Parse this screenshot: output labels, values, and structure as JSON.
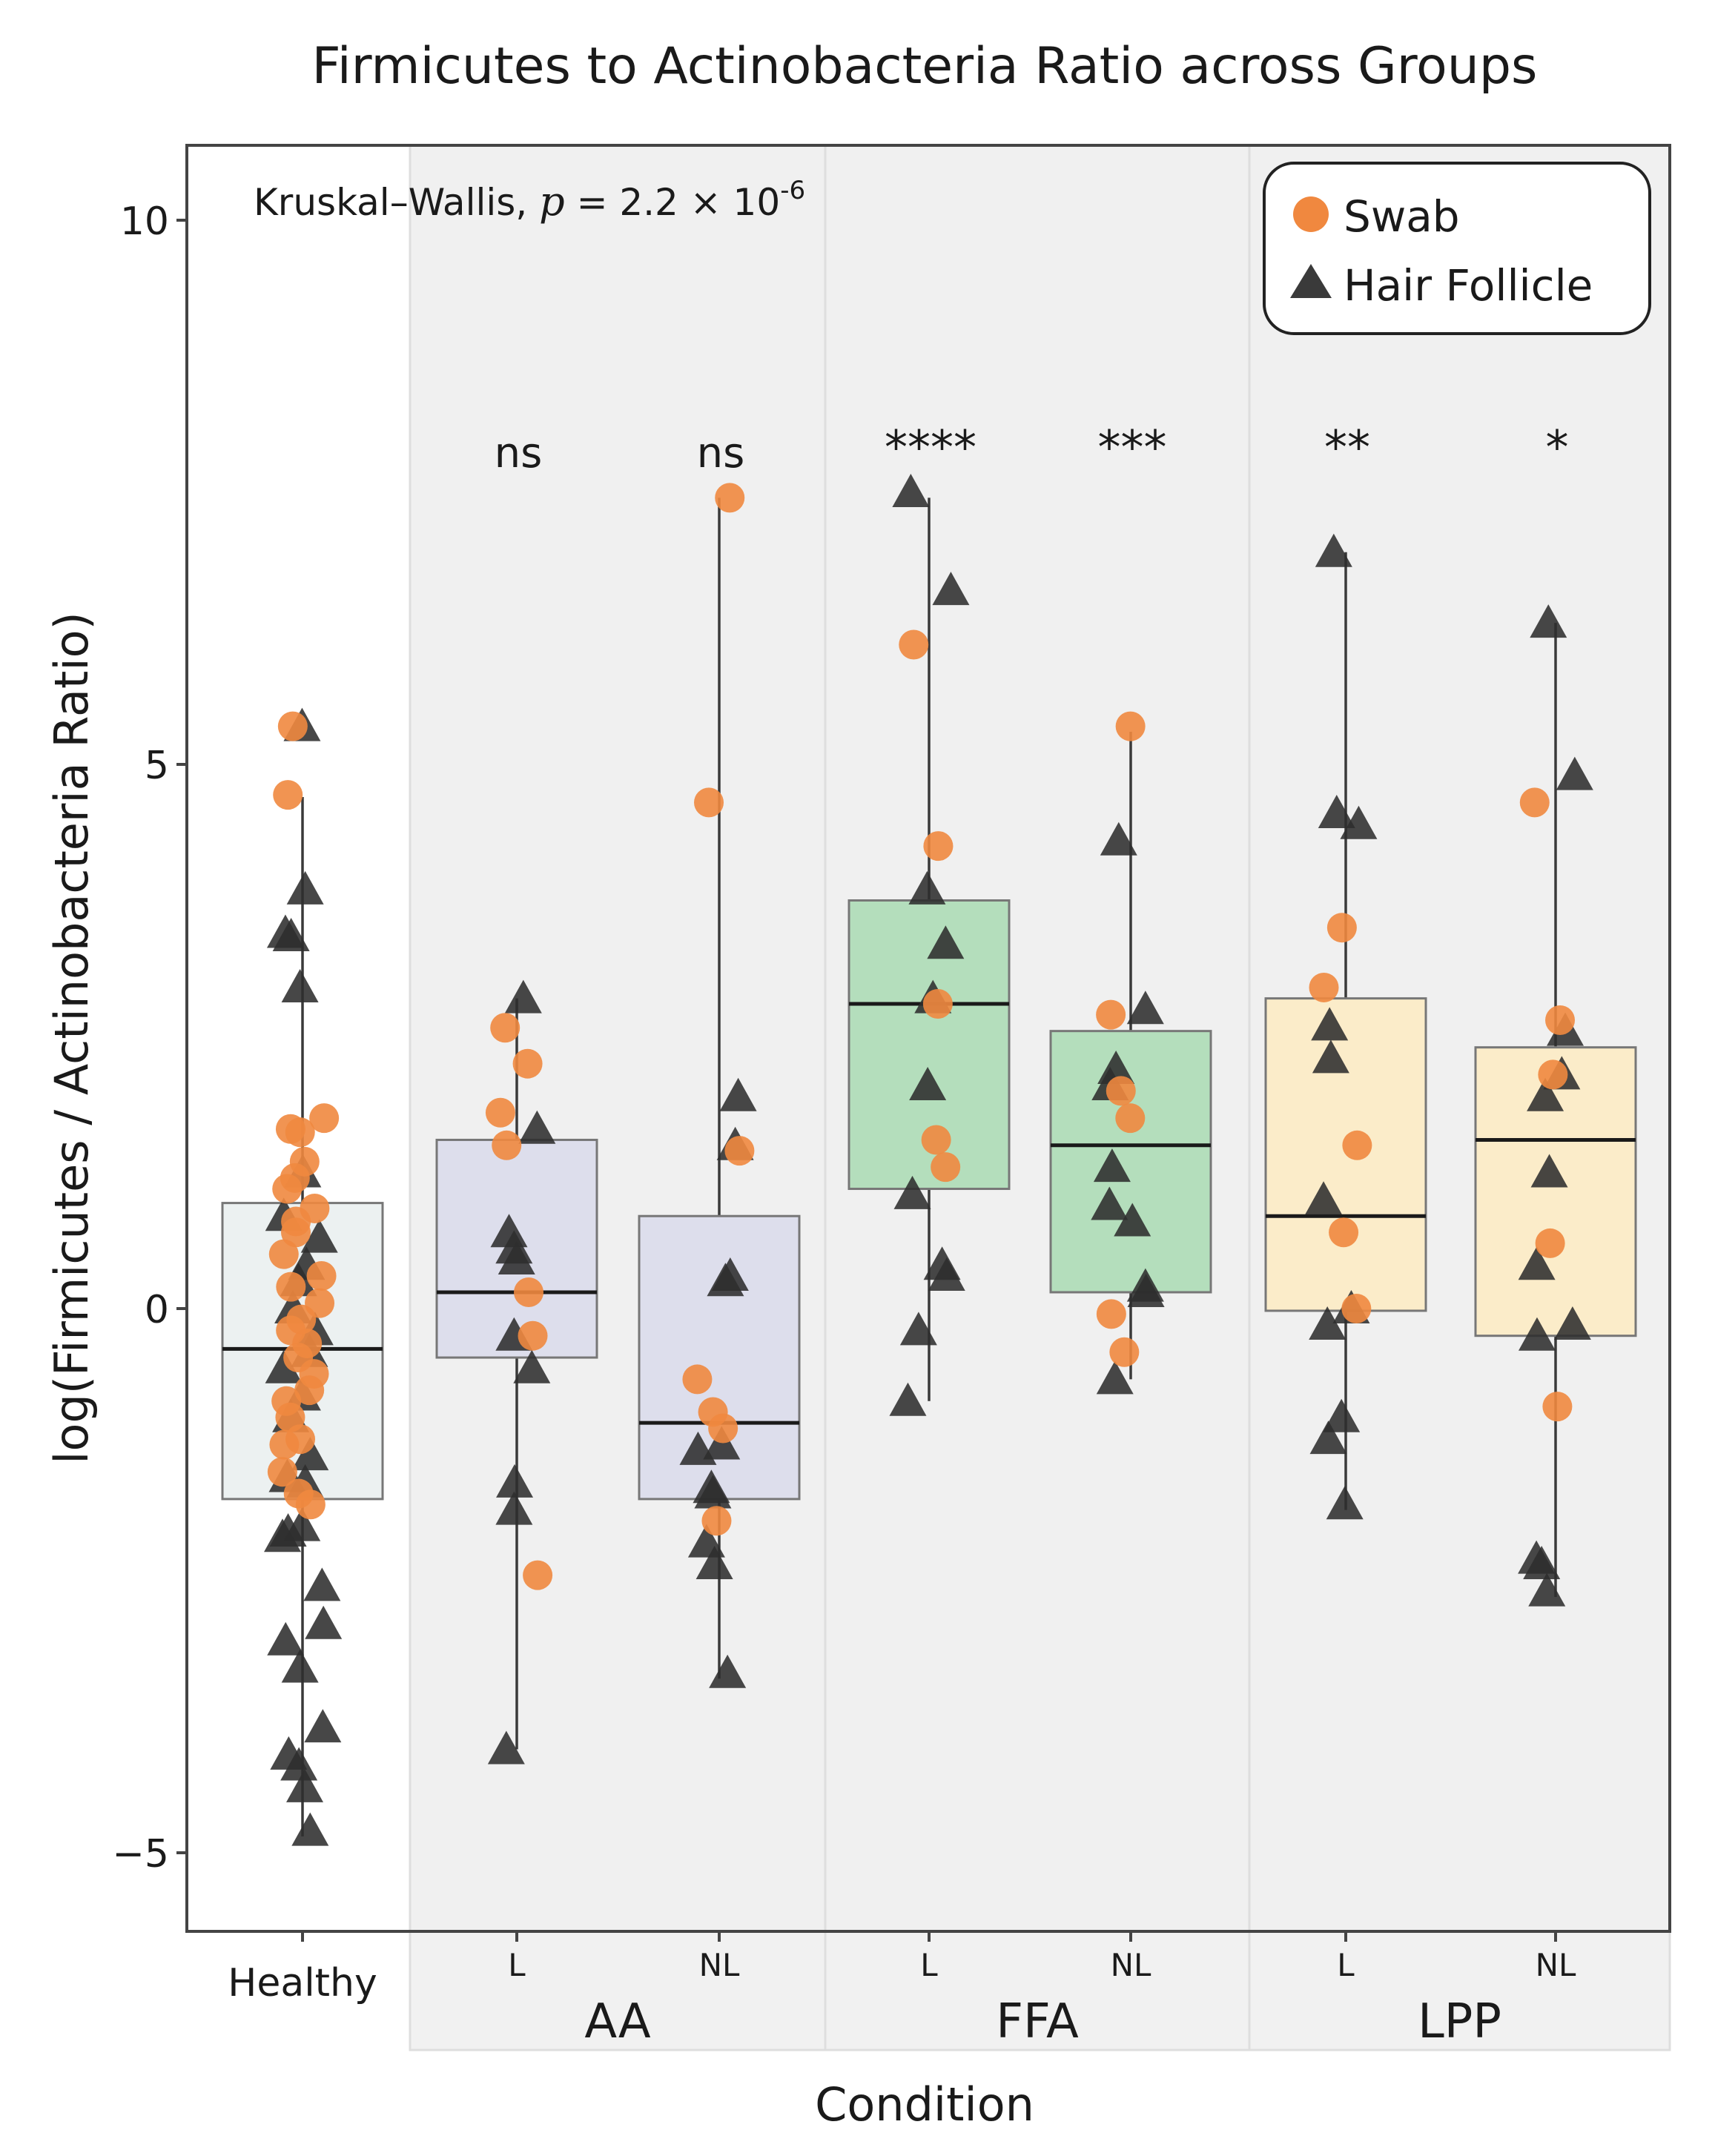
{
  "chart_data": {
    "type": "box",
    "title": "Firmicutes to Actinobacteria Ratio across Groups",
    "xlabel": "Condition",
    "ylabel": "log(Firmicutes / Actinobacteria Ratio)",
    "ylim": [
      -5.8,
      10.8
    ],
    "yticks": [
      -5,
      0,
      5,
      10
    ],
    "ytick_labels": [
      "−5",
      "0",
      "5",
      "10"
    ],
    "annotation": {
      "prefix": "Kruskal–Wallis, ",
      "p_symbol": "p",
      "equals": " = 2.2 × 10",
      "exponent": "-6"
    },
    "legend": {
      "position": "top-right",
      "entries": [
        {
          "label": "Swab",
          "marker": "circle",
          "color": "#f0883f"
        },
        {
          "label": "Hair Follicle",
          "marker": "triangle",
          "color": "#3a3a3a"
        }
      ]
    },
    "panels": [
      {
        "label": "",
        "shaded": false
      },
      {
        "label": "AA",
        "shaded": true
      },
      {
        "label": "FFA",
        "shaded": true
      },
      {
        "label": "LPP",
        "shaded": true
      }
    ],
    "groups": [
      {
        "name": "Healthy",
        "panel": 0,
        "fill": "#e9eeef",
        "significance": "",
        "box": {
          "q1": -1.75,
          "median": -0.37,
          "q3": 0.97,
          "whisker_low": -4.85,
          "whisker_high": 4.7
        },
        "swab": [
          5.35,
          4.72,
          1.75,
          1.62,
          1.65,
          1.35,
          1.2,
          1.1,
          0.92,
          0.8,
          0.7,
          0.5,
          0.3,
          0.2,
          0.05,
          -0.1,
          -0.2,
          -0.32,
          -0.45,
          -0.6,
          -0.75,
          -0.85,
          -1.0,
          -1.2,
          -1.25,
          -1.5,
          -1.7,
          -1.8
        ],
        "follicle": [
          5.35,
          3.85,
          3.45,
          3.42,
          2.95,
          1.25,
          0.85,
          0.65,
          0.4,
          0.25,
          0.0,
          -0.2,
          -0.4,
          -0.55,
          -0.8,
          -1.0,
          -1.35,
          -1.55,
          -1.6,
          -2.0,
          -2.05,
          -2.1,
          -2.55,
          -2.9,
          -3.05,
          -3.3,
          -3.85,
          -4.1,
          -4.2,
          -4.4,
          -4.8
        ]
      },
      {
        "name": "L",
        "panel": 1,
        "fill": "#d9daeb",
        "significance": "ns",
        "box": {
          "q1": -0.45,
          "median": 0.15,
          "q3": 1.55,
          "whisker_low": -4.05,
          "whisker_high": 2.85
        },
        "swab": [
          2.58,
          2.25,
          1.8,
          1.5,
          0.15,
          -0.25,
          -2.45
        ],
        "follicle": [
          2.85,
          1.65,
          0.7,
          0.55,
          0.45,
          -0.25,
          -0.55,
          -1.6,
          -1.85,
          -4.05
        ]
      },
      {
        "name": "NL",
        "panel": 1,
        "fill": "#d9daeb",
        "significance": "ns",
        "box": {
          "q1": -1.75,
          "median": -1.05,
          "q3": 0.85,
          "whisker_low": -3.4,
          "whisker_high": 7.45
        },
        "swab": [
          7.45,
          4.65,
          1.45,
          -0.65,
          -0.95,
          -1.1,
          -1.95
        ],
        "follicle": [
          1.95,
          1.5,
          0.3,
          0.25,
          -1.25,
          -1.3,
          -1.65,
          -1.7,
          -2.15,
          -2.35,
          -3.35
        ]
      },
      {
        "name": "L",
        "panel": 2,
        "fill": "#a9dbb3",
        "significance": "****",
        "box": {
          "q1": 1.1,
          "median": 2.8,
          "q3": 3.75,
          "whisker_low": -0.85,
          "whisker_high": 7.45
        },
        "swab": [
          6.1,
          4.25,
          2.8,
          1.55,
          1.3
        ],
        "follicle": [
          7.5,
          6.6,
          3.85,
          3.35,
          2.85,
          2.05,
          1.05,
          0.4,
          0.3,
          -0.2,
          -0.85
        ]
      },
      {
        "name": "NL",
        "panel": 2,
        "fill": "#a9dbb3",
        "significance": "***",
        "box": {
          "q1": 0.15,
          "median": 1.5,
          "q3": 2.55,
          "whisker_low": -0.65,
          "whisker_high": 5.3
        },
        "swab": [
          5.35,
          2.7,
          2.0,
          1.75,
          -0.05,
          -0.4
        ],
        "follicle": [
          4.3,
          2.75,
          2.2,
          2.05,
          1.3,
          0.95,
          0.8,
          0.2,
          0.15,
          -0.65
        ]
      },
      {
        "name": "L",
        "panel": 3,
        "fill": "#fdebc2",
        "significance": "**",
        "box": {
          "q1": -0.02,
          "median": 0.85,
          "q3": 2.85,
          "whisker_low": -1.85,
          "whisker_high": 6.95
        },
        "swab": [
          3.5,
          2.95,
          1.5,
          0.7,
          0.0
        ],
        "follicle": [
          6.95,
          4.55,
          4.45,
          2.6,
          2.3,
          1.0,
          0.0,
          -0.15,
          -1.0,
          -1.2,
          -1.8
        ]
      },
      {
        "name": "NL",
        "panel": 3,
        "fill": "#fdebc2",
        "significance": "*",
        "box": {
          "q1": -0.25,
          "median": 1.55,
          "q3": 2.4,
          "whisker_low": -2.65,
          "whisker_high": 6.3
        },
        "swab": [
          4.65,
          2.65,
          2.15,
          0.6,
          -0.9
        ],
        "follicle": [
          6.3,
          4.9,
          2.55,
          2.15,
          1.95,
          1.25,
          0.4,
          -0.15,
          -0.25,
          -2.3,
          -2.35,
          -2.6
        ]
      }
    ]
  }
}
